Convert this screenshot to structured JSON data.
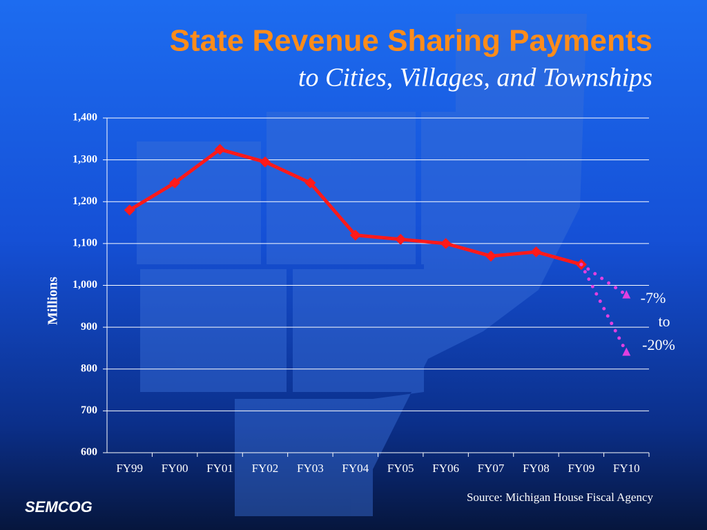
{
  "chart_data": {
    "type": "line",
    "title": "State Revenue Sharing Payments",
    "subtitle": "to Cities, Villages, and Townships",
    "y_label": "Millions",
    "categories": [
      "FY99",
      "FY00",
      "FY01",
      "FY02",
      "FY03",
      "FY04",
      "FY05",
      "FY06",
      "FY07",
      "FY08",
      "FY09",
      "FY10"
    ],
    "series": [
      {
        "color": "#ff1a1a",
        "line_style": "solid",
        "marker": "diamond",
        "values": [
          1180,
          1245,
          1325,
          1295,
          1245,
          1120,
          1110,
          1100,
          1070,
          1080,
          1050,
          null
        ]
      },
      {
        "color": "#e040e0",
        "line_style": "dotted",
        "marker": "triangle",
        "values": [
          null,
          null,
          null,
          null,
          null,
          null,
          null,
          null,
          null,
          null,
          1050,
          977
        ]
      },
      {
        "color": "#e040e0",
        "line_style": "dotted",
        "marker": "triangle",
        "values": [
          null,
          null,
          null,
          null,
          null,
          null,
          null,
          null,
          null,
          null,
          1050,
          840
        ]
      }
    ],
    "ylim": [
      600,
      1400
    ],
    "yticks": [
      600,
      700,
      800,
      900,
      {
        "value": 1000,
        "label": "1,000"
      },
      {
        "value": 1100,
        "label": "1,100"
      },
      {
        "value": 1200,
        "label": "1,200"
      },
      {
        "value": 1300,
        "label": "1,300"
      },
      {
        "value": 1400,
        "label": "1,400"
      }
    ],
    "grid": true,
    "annotations": [
      "-7%",
      "to",
      "-20%"
    ],
    "source": "Source: Michigan House Fiscal Agency",
    "logo": "SEMCOG"
  }
}
